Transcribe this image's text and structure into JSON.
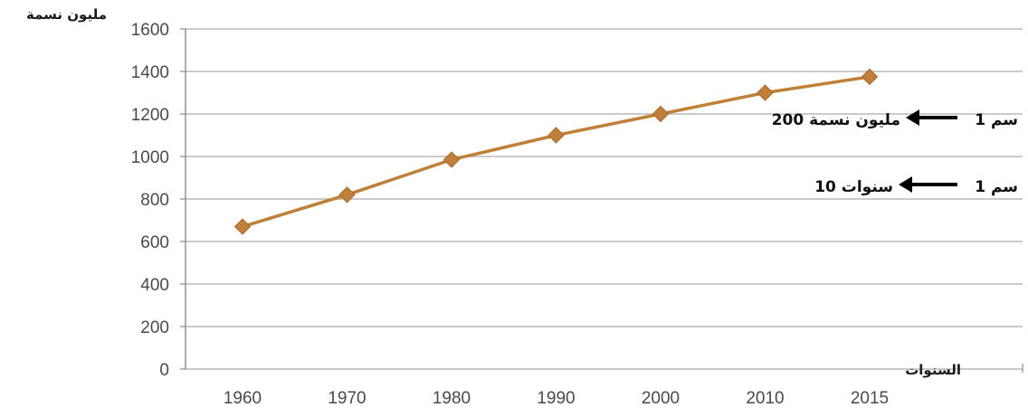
{
  "chart_data": {
    "type": "line",
    "xlabel": "السنوات",
    "ylabel": "مليون نسمة",
    "categories": [
      "1960",
      "1970",
      "1980",
      "1990",
      "2000",
      "2010",
      "2015"
    ],
    "values": [
      670,
      820,
      985,
      1100,
      1200,
      1300,
      1375
    ],
    "ylim": [
      0,
      1600
    ],
    "yticks": [
      0,
      200,
      400,
      600,
      800,
      1000,
      1200,
      1400,
      1600
    ],
    "grid": true,
    "line_color": "#c0803a",
    "marker": "diamond",
    "annotations": [
      {
        "unit_label": "1 سم",
        "value_label": "200 مليون نسمة"
      },
      {
        "unit_label": "1 سم",
        "value_label": "10 سنوات"
      }
    ]
  }
}
